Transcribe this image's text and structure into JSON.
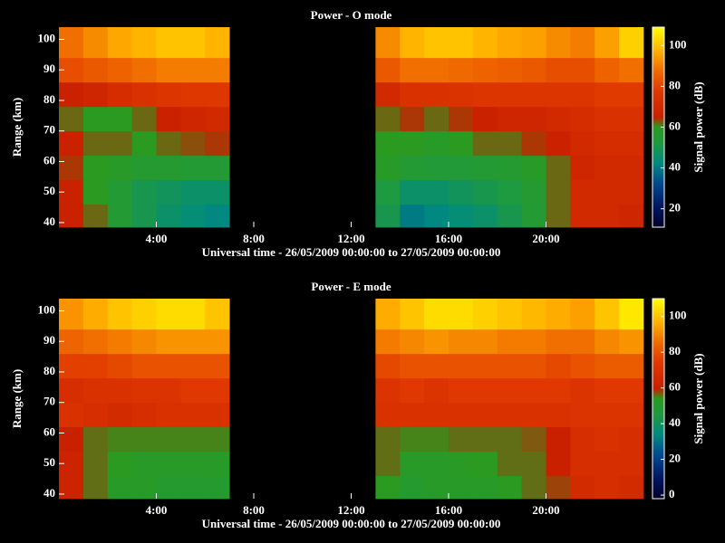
{
  "chart_data": [
    {
      "type": "heatmap",
      "title": "Power - O mode",
      "xlabel": "Universal time - 26/05/2009 00:00:00 to 27/05/2009 00:00:00",
      "ylabel": "Range (km)",
      "colorbar_label": "Signal power (dB)",
      "xbins": [
        0,
        1,
        2,
        3,
        4,
        5,
        6,
        7,
        8,
        9,
        10,
        11,
        12,
        13,
        14,
        15,
        16,
        17,
        18,
        19,
        20,
        21,
        22,
        23,
        24
      ],
      "ybins": [
        38.5,
        46,
        54,
        62,
        70,
        78,
        86,
        94,
        104
      ],
      "z": [
        [
          66,
          62,
          55,
          50,
          46,
          44,
          42,
          null,
          null,
          null,
          null,
          null,
          null,
          50,
          40,
          42,
          44,
          46,
          50,
          55,
          62,
          70,
          70,
          68
        ],
        [
          66,
          60,
          55,
          50,
          48,
          46,
          46,
          null,
          null,
          null,
          null,
          null,
          null,
          52,
          46,
          46,
          48,
          50,
          52,
          56,
          62,
          70,
          70,
          70
        ],
        [
          64,
          60,
          58,
          56,
          56,
          55,
          55,
          null,
          null,
          null,
          null,
          null,
          null,
          58,
          55,
          54,
          54,
          55,
          56,
          58,
          62,
          68,
          70,
          70
        ],
        [
          66,
          62,
          62,
          60,
          62,
          63,
          64,
          null,
          null,
          null,
          null,
          null,
          null,
          60,
          60,
          58,
          60,
          62,
          62,
          64,
          66,
          70,
          72,
          72
        ],
        [
          62,
          60,
          60,
          62,
          66,
          68,
          70,
          null,
          null,
          null,
          null,
          null,
          null,
          62,
          64,
          62,
          64,
          66,
          68,
          68,
          70,
          72,
          74,
          74
        ],
        [
          66,
          68,
          72,
          74,
          76,
          77,
          77,
          null,
          null,
          null,
          null,
          null,
          null,
          70,
          74,
          74,
          75,
          76,
          76,
          76,
          76,
          76,
          78,
          78
        ],
        [
          82,
          84,
          86,
          88,
          90,
          90,
          90,
          null,
          null,
          null,
          null,
          null,
          null,
          84,
          88,
          88,
          87,
          86,
          85,
          84,
          82,
          82,
          86,
          88
        ],
        [
          88,
          92,
          96,
          98,
          100,
          100,
          98,
          null,
          null,
          null,
          null,
          null,
          null,
          92,
          98,
          100,
          100,
          98,
          96,
          95,
          92,
          90,
          95,
          102
        ]
      ],
      "xlim": [
        0,
        24
      ],
      "ylim": [
        38.5,
        104
      ],
      "xticks": [
        {
          "value": 4,
          "label": "4:00"
        },
        {
          "value": 8,
          "label": "8:00"
        },
        {
          "value": 12,
          "label": "12:00"
        },
        {
          "value": 16,
          "label": "16:00"
        },
        {
          "value": 20,
          "label": "20:00"
        }
      ],
      "yticks": [
        40,
        50,
        60,
        70,
        80,
        90,
        100
      ],
      "clim": [
        11,
        109
      ],
      "cticks": [
        20,
        40,
        60,
        80,
        100
      ]
    },
    {
      "type": "heatmap",
      "title": "Power - E mode",
      "xlabel": "Universal time - 26/05/2009 00:00:00 to 27/05/2009 00:00:00",
      "ylabel": "Range (km)",
      "colorbar_label": "Signal power (dB)",
      "xbins": [
        0,
        1,
        2,
        3,
        4,
        5,
        6,
        7,
        8,
        9,
        10,
        11,
        12,
        13,
        14,
        15,
        16,
        17,
        18,
        19,
        20,
        21,
        22,
        23,
        24
      ],
      "ybins": [
        38.5,
        46,
        54,
        62,
        70,
        78,
        86,
        94,
        104
      ],
      "z": [
        [
          62,
          56,
          52,
          52,
          50,
          50,
          50,
          null,
          null,
          null,
          null,
          null,
          null,
          54,
          50,
          52,
          52,
          52,
          54,
          56,
          58,
          66,
          68,
          66
        ],
        [
          62,
          56,
          54,
          52,
          52,
          52,
          52,
          null,
          null,
          null,
          null,
          null,
          null,
          56,
          52,
          52,
          53,
          54,
          56,
          56,
          60,
          68,
          68,
          68
        ],
        [
          60,
          56,
          55,
          55,
          55,
          55,
          55,
          null,
          null,
          null,
          null,
          null,
          null,
          56,
          55,
          55,
          56,
          56,
          56,
          57,
          60,
          68,
          70,
          68
        ],
        [
          70,
          68,
          66,
          68,
          70,
          70,
          70,
          null,
          null,
          null,
          null,
          null,
          null,
          70,
          70,
          70,
          70,
          70,
          70,
          70,
          70,
          72,
          72,
          72
        ],
        [
          68,
          70,
          70,
          72,
          72,
          74,
          74,
          null,
          null,
          null,
          null,
          null,
          null,
          72,
          74,
          72,
          74,
          74,
          74,
          74,
          74,
          72,
          74,
          74
        ],
        [
          76,
          76,
          78,
          80,
          80,
          80,
          80,
          null,
          null,
          null,
          null,
          null,
          null,
          78,
          80,
          80,
          80,
          80,
          80,
          80,
          78,
          80,
          82,
          82
        ],
        [
          84,
          86,
          88,
          90,
          92,
          92,
          92,
          null,
          null,
          null,
          null,
          null,
          null,
          88,
          90,
          92,
          90,
          90,
          88,
          88,
          86,
          86,
          90,
          92
        ],
        [
          92,
          96,
          100,
          102,
          104,
          104,
          100,
          null,
          null,
          null,
          null,
          null,
          null,
          96,
          100,
          104,
          104,
          102,
          100,
          98,
          96,
          94,
          100,
          106
        ]
      ],
      "xlim": [
        0,
        24
      ],
      "ylim": [
        38.5,
        104
      ],
      "xticks": [
        {
          "value": 4,
          "label": "4:00"
        },
        {
          "value": 8,
          "label": "8:00"
        },
        {
          "value": 12,
          "label": "12:00"
        },
        {
          "value": 16,
          "label": "16:00"
        },
        {
          "value": 20,
          "label": "20:00"
        }
      ],
      "yticks": [
        40,
        50,
        60,
        70,
        80,
        90,
        100
      ],
      "clim": [
        -2,
        110
      ],
      "cticks": [
        0,
        20,
        40,
        60,
        80,
        100
      ]
    }
  ]
}
